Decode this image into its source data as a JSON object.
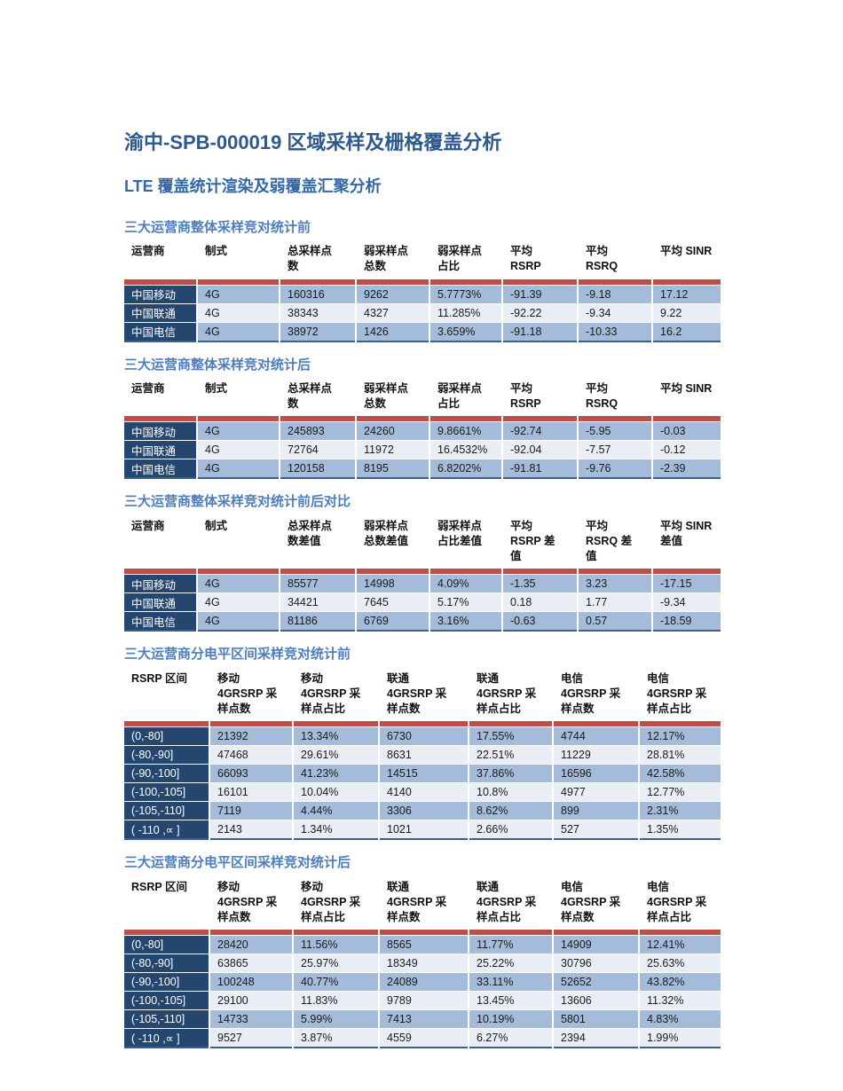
{
  "doc": {
    "title": "渝中-SPB-000019 区域采样及栅格覆盖分析",
    "subtitle": "LTE 覆盖统计渲染及弱覆盖汇聚分析"
  },
  "colors": {
    "title_blue": "#2E598E",
    "subtitle_blue": "#3468A6",
    "section_heading_blue": "#4E7EBB",
    "first_column_navy": "#25476F",
    "red_divider": "#BE4E48",
    "row_band_medium": "#A4BCD9",
    "row_band_light": "#E9EEF5",
    "table_bottom_border": "#39608C"
  },
  "sections": [
    {
      "heading": "三大运营商整体采样竞对统计前",
      "columns": [
        "运营商",
        "制式",
        "总采样点\n数",
        "弱采样点\n总数",
        "弱采样点\n占比",
        "平均\nRSRP",
        "平均\nRSRQ",
        "平均 SINR"
      ],
      "rows": [
        [
          "中国移动",
          "4G",
          "160316",
          "9262",
          "5.7773%",
          "-91.39",
          "-9.18",
          "17.12"
        ],
        [
          "中国联通",
          "4G",
          "38343",
          "4327",
          "11.285%",
          "-92.22",
          "-9.34",
          "9.22"
        ],
        [
          "中国电信",
          "4G",
          "38972",
          "1426",
          "3.659%",
          "-91.18",
          "-10.33",
          "16.2"
        ]
      ]
    },
    {
      "heading": "三大运营商整体采样竞对统计后",
      "columns": [
        "运营商",
        "制式",
        "总采样点\n数",
        "弱采样点\n总数",
        "弱采样点\n占比",
        "平均\nRSRP",
        "平均\nRSRQ",
        "平均 SINR"
      ],
      "rows": [
        [
          "中国移动",
          "4G",
          "245893",
          "24260",
          "9.8661%",
          "-92.74",
          "-5.95",
          "-0.03"
        ],
        [
          "中国联通",
          "4G",
          "72764",
          "11972",
          "16.4532%",
          "-92.04",
          "-7.57",
          "-0.12"
        ],
        [
          "中国电信",
          "4G",
          "120158",
          "8195",
          "6.8202%",
          "-91.81",
          "-9.76",
          "-2.39"
        ]
      ]
    },
    {
      "heading": "三大运营商整体采样竞对统计前后对比",
      "columns": [
        "运营商",
        "制式",
        "总采样点\n数差值",
        "弱采样点\n总数差值",
        "弱采样点\n占比差值",
        "平均\nRSRP 差\n值",
        "平均\nRSRQ 差\n值",
        "平均 SINR\n差值"
      ],
      "rows": [
        [
          "中国移动",
          "4G",
          "85577",
          "14998",
          "4.09%",
          "-1.35",
          "3.23",
          "-17.15"
        ],
        [
          "中国联通",
          "4G",
          "34421",
          "7645",
          "5.17%",
          "0.18",
          "1.77",
          "-9.34"
        ],
        [
          "中国电信",
          "4G",
          "81186",
          "6769",
          "3.16%",
          "-0.63",
          "0.57",
          "-18.59"
        ]
      ]
    },
    {
      "heading": "三大运营商分电平区间采样竞对统计前",
      "columns": [
        "RSRP 区间",
        "移动\n4GRSRP 采\n样点数",
        "移动\n4GRSRP 采\n样点占比",
        "联通\n4GRSRP 采\n样点数",
        "联通\n4GRSRP 采\n样点占比",
        "电信\n4GRSRP 采\n样点数",
        "电信\n4GRSRP 采\n样点占比"
      ],
      "rows": [
        [
          "(0,-80]",
          "21392",
          "13.34%",
          "6730",
          "17.55%",
          "4744",
          "12.17%"
        ],
        [
          "(-80,-90]",
          "47468",
          "29.61%",
          "8631",
          "22.51%",
          "11229",
          "28.81%"
        ],
        [
          "(-90,-100]",
          "66093",
          "41.23%",
          "14515",
          "37.86%",
          "16596",
          "42.58%"
        ],
        [
          "(-100,-105]",
          "16101",
          "10.04%",
          "4140",
          "10.8%",
          "4977",
          "12.77%"
        ],
        [
          "(-105,-110]",
          "7119",
          "4.44%",
          "3306",
          "8.62%",
          "899",
          "2.31%"
        ],
        [
          "( -110 ,∝  ]",
          "2143",
          "1.34%",
          "1021",
          "2.66%",
          "527",
          "1.35%"
        ]
      ]
    },
    {
      "heading": "三大运营商分电平区间采样竞对统计后",
      "columns": [
        "RSRP 区间",
        "移动\n4GRSRP 采\n样点数",
        "移动\n4GRSRP 采\n样点占比",
        "联通\n4GRSRP 采\n样点数",
        "联通\n4GRSRP 采\n样点占比",
        "电信\n4GRSRP 采\n样点数",
        "电信\n4GRSRP 采\n样点占比"
      ],
      "rows": [
        [
          "(0,-80]",
          "28420",
          "11.56%",
          "8565",
          "11.77%",
          "14909",
          "12.41%"
        ],
        [
          "(-80,-90]",
          "63865",
          "25.97%",
          "18349",
          "25.22%",
          "30796",
          "25.63%"
        ],
        [
          "(-90,-100]",
          "100248",
          "40.77%",
          "24089",
          "33.11%",
          "52652",
          "43.82%"
        ],
        [
          "(-100,-105]",
          "29100",
          "11.83%",
          "9789",
          "13.45%",
          "13606",
          "11.32%"
        ],
        [
          "(-105,-110]",
          "14733",
          "5.99%",
          "7413",
          "10.19%",
          "5801",
          "4.83%"
        ],
        [
          "( -110 ,∝  ]",
          "9527",
          "3.87%",
          "4559",
          "6.27%",
          "2394",
          "1.99%"
        ]
      ]
    }
  ]
}
